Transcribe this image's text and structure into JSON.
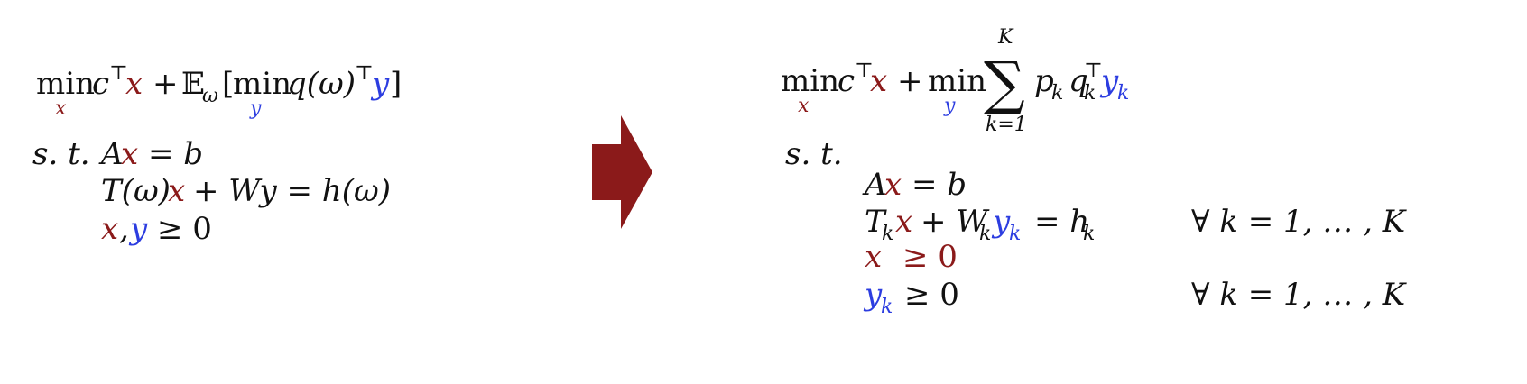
{
  "colors": {
    "x_variable": "#8b1a1a",
    "y_variable": "#2c3de0",
    "text": "#111111",
    "arrow": "#8b1a1a"
  },
  "left_formulation": {
    "objective": {
      "min": "min",
      "min_sub": "x",
      "cT": "c",
      "transpose": "⊤",
      "x": "x",
      "plus": "+",
      "expectation": "𝔼",
      "expectation_sub": "ω",
      "open_bracket": "[",
      "inner_min": "min",
      "inner_min_sub": "y",
      "q_omega": "q(ω)",
      "inner_transpose": "⊤",
      "y": "y",
      "close_bracket": "]"
    },
    "st_label": "s. t.",
    "constraints": {
      "c1_pre": "A",
      "c1_x": "x",
      "c1_post": "= b",
      "c2_pre": "T(ω)",
      "c2_x": "x",
      "c2_post": "+ Wy = h(ω)",
      "c3_x": "x",
      "c3_comma": ",",
      "c3_y": "y",
      "c3_post": "≥ 0"
    }
  },
  "arrow": {
    "icon": "right-arrow-icon"
  },
  "right_formulation": {
    "objective": {
      "min": "min",
      "min_sub": "x",
      "cT": "c",
      "transpose": "⊤",
      "x": "x",
      "plus": "+",
      "inner_min": "min",
      "inner_min_sub": "y",
      "sum": "∑",
      "sum_upper": "K",
      "sum_lower": "k=1",
      "p": "p",
      "p_sub": "k",
      "q": "q",
      "q_sub": "k",
      "q_sup": "⊤",
      "y": "y",
      "y_sub": "k"
    },
    "st_label": "s. t.",
    "constraints": {
      "c1_pre": "A",
      "c1_x": "x",
      "c1_post": "= b",
      "c2_T": "T",
      "c2_T_sub": "k",
      "c2_x": "x",
      "c2_plus": "+ W",
      "c2_W_sub": "k",
      "c2_y": "y",
      "c2_y_sub": "k",
      "c2_eq": "= h",
      "c2_h_sub": "k",
      "c2_forall": "∀ k = 1, … , K",
      "c3_x": "x",
      "c3_post": "≥ 0",
      "c4_y": "y",
      "c4_y_sub": "k",
      "c4_post": "≥ 0",
      "c4_forall": "∀ k = 1, … , K"
    }
  }
}
